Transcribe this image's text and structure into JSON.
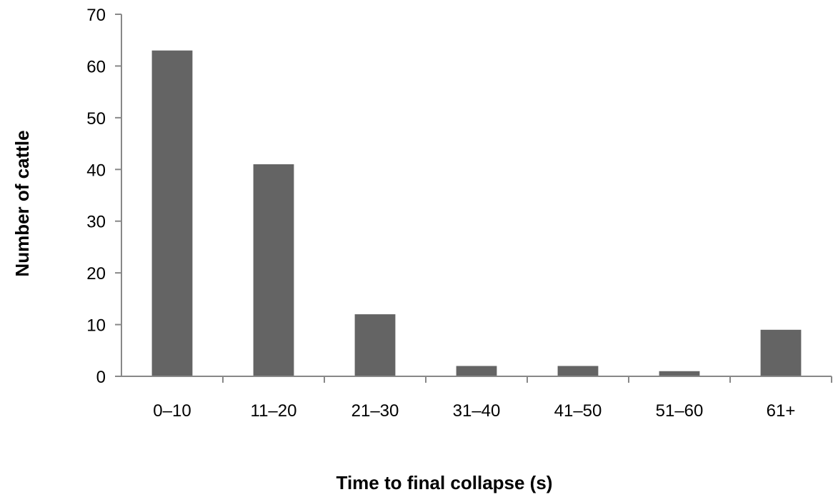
{
  "chart_data": {
    "type": "bar",
    "categories": [
      "0–10",
      "11–20",
      "21–30",
      "31–40",
      "41–50",
      "51–60",
      "61+"
    ],
    "values": [
      63,
      41,
      12,
      2,
      2,
      1,
      9
    ],
    "title": "",
    "xlabel": "Time to final collapse (s)",
    "ylabel": "Number of cattle",
    "ylim": [
      0,
      70
    ],
    "yticks": [
      0,
      10,
      20,
      30,
      40,
      50,
      60,
      70
    ],
    "grid": false,
    "legend": "none",
    "colors": {
      "bar": "#646464",
      "axis": "#888888",
      "text": "#000000"
    }
  }
}
